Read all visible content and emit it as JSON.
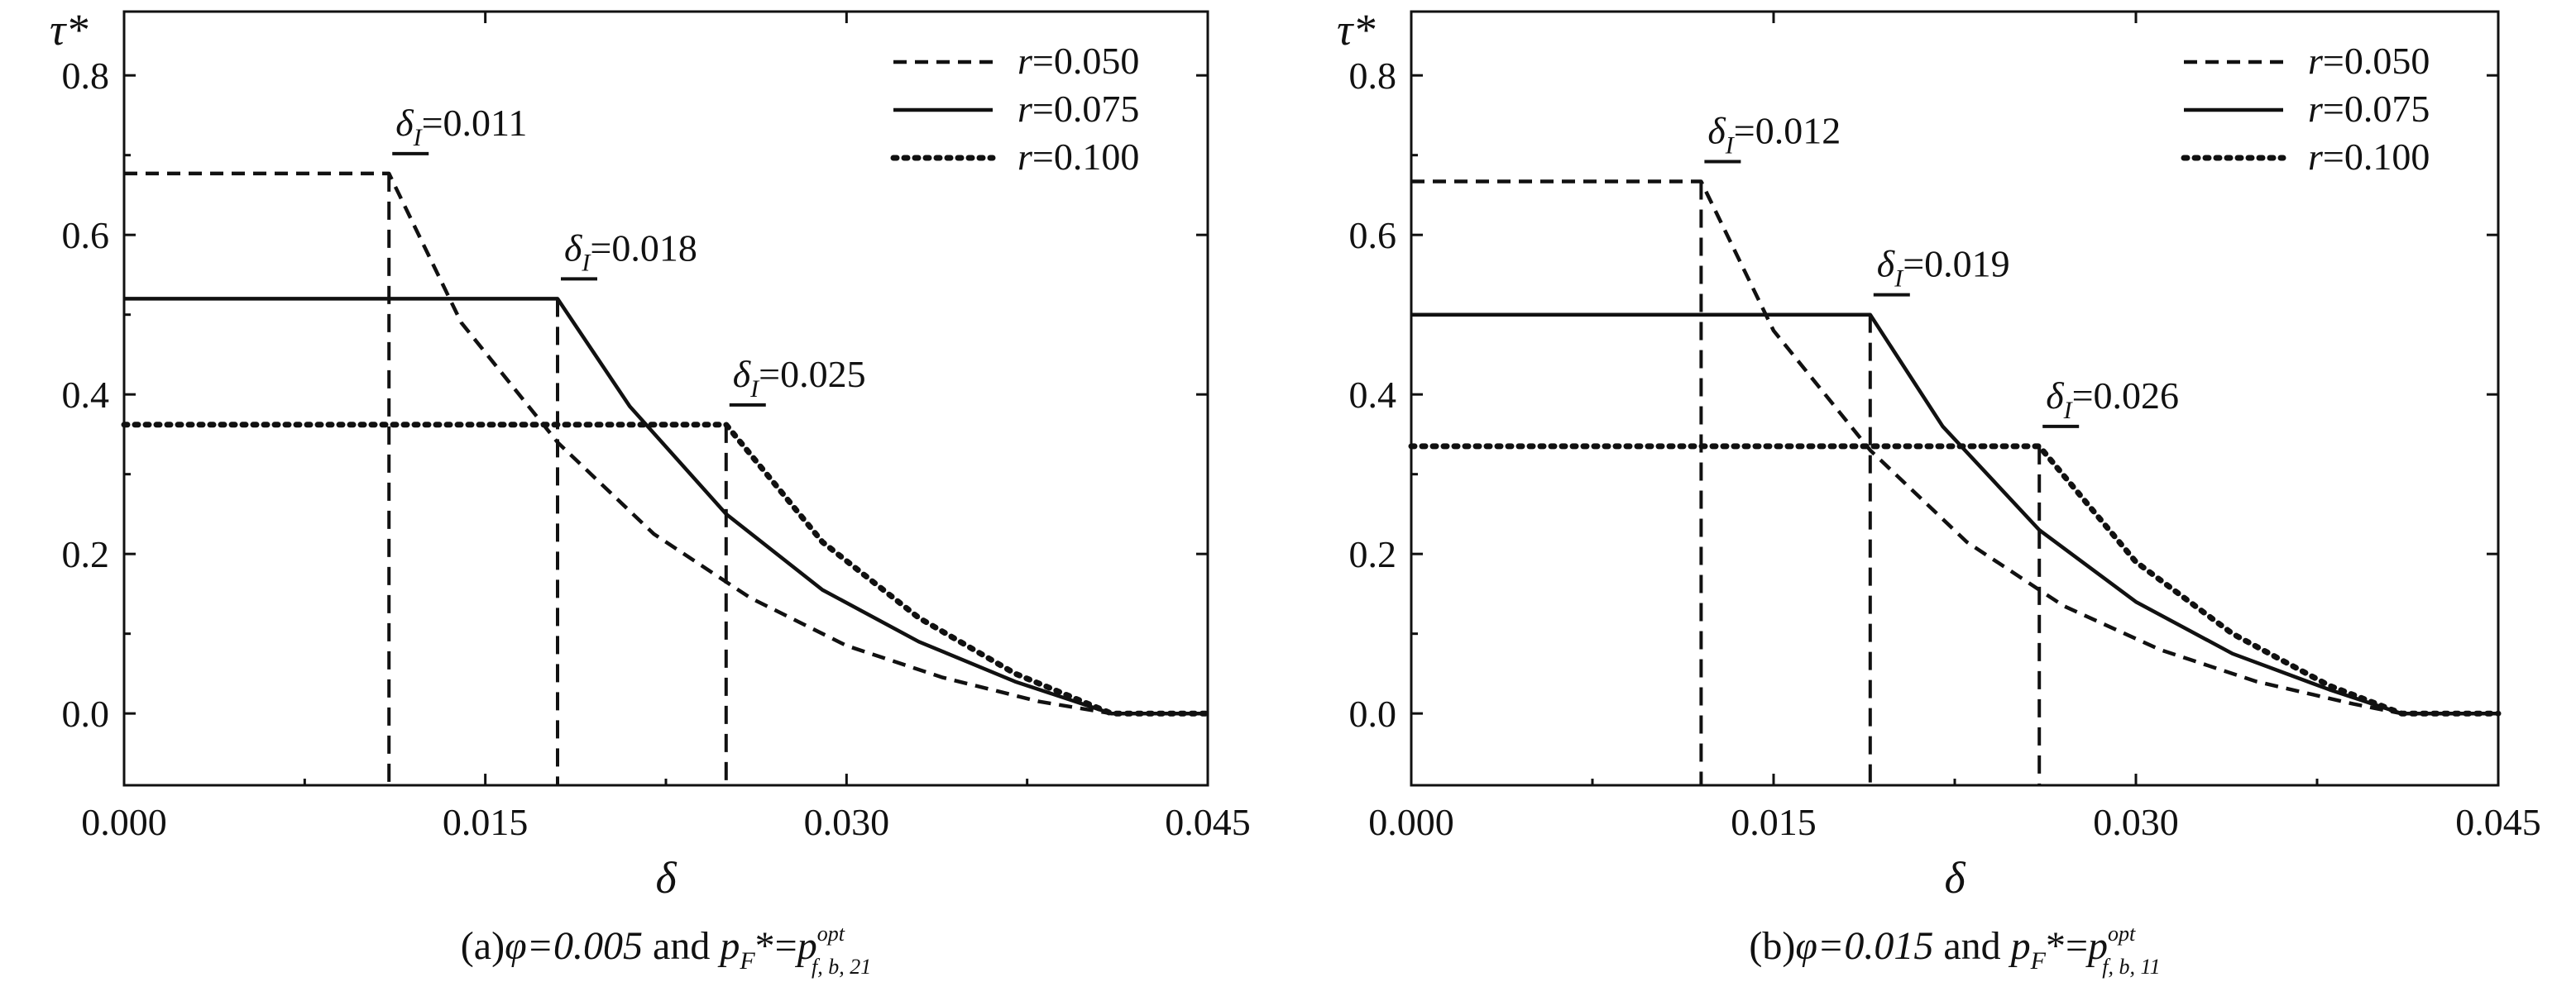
{
  "chart_data": [
    {
      "type": "line",
      "panel": "a",
      "caption": {
        "prefix": "(a)",
        "phi": "φ=0.005",
        "and": "and",
        "p": "p",
        "p_sub": "F",
        "eq": "*=",
        "rhs": "p",
        "rhs_sup": "opt",
        "rhs_sub": "f, b, 21"
      },
      "xlabel": "δ",
      "ylabel": "τ*",
      "xlim": [
        0,
        0.045
      ],
      "ylim": [
        -0.09,
        0.88
      ],
      "xticks": [
        0,
        0.015,
        0.03,
        0.045
      ],
      "xtick_labels": [
        "0.000",
        "0.015",
        "0.030",
        "0.045"
      ],
      "yticks": [
        0,
        0.2,
        0.4,
        0.6,
        0.8
      ],
      "ytick_labels": [
        "0.0",
        "0.2",
        "0.4",
        "0.6",
        "0.8"
      ],
      "legend_position": "top-right",
      "grid": false,
      "series": [
        {
          "name": "r=0.050",
          "r": "r",
          "rval": "=0.050",
          "style": "dashed",
          "x": [
            0,
            0.011,
            0.014,
            0.018,
            0.022,
            0.026,
            0.03,
            0.034,
            0.038,
            0.041,
            0.045
          ],
          "y": [
            0.677,
            0.677,
            0.49,
            0.34,
            0.225,
            0.145,
            0.085,
            0.045,
            0.015,
            0,
            0
          ],
          "threshold_label": {
            "delta": "δ",
            "sub": "I",
            "value": "=0.011"
          },
          "threshold": 0.011
        },
        {
          "name": "r=0.075",
          "r": "r",
          "rval": "=0.075",
          "style": "solid",
          "x": [
            0,
            0.018,
            0.021,
            0.025,
            0.029,
            0.033,
            0.037,
            0.041,
            0.045
          ],
          "y": [
            0.52,
            0.52,
            0.385,
            0.25,
            0.155,
            0.09,
            0.04,
            0,
            0
          ],
          "threshold_label": {
            "delta": "δ",
            "sub": "I",
            "value": "=0.018"
          },
          "threshold": 0.018
        },
        {
          "name": "r=0.100",
          "r": "r",
          "rval": "=0.100",
          "style": "dotted",
          "x": [
            0,
            0.025,
            0.029,
            0.033,
            0.037,
            0.041,
            0.045
          ],
          "y": [
            0.362,
            0.362,
            0.215,
            0.12,
            0.05,
            0,
            0
          ],
          "threshold_label": {
            "delta": "δ",
            "sub": "I",
            "value": "=0.025"
          },
          "threshold": 0.025
        }
      ]
    },
    {
      "type": "line",
      "panel": "b",
      "caption": {
        "prefix": "(b)",
        "phi": "φ=0.015",
        "and": "and",
        "p": "p",
        "p_sub": "F",
        "eq": "*=",
        "rhs": "p",
        "rhs_sup": "opt",
        "rhs_sub": "f, b, 11"
      },
      "xlabel": "δ",
      "ylabel": "τ*",
      "xlim": [
        0,
        0.045
      ],
      "ylim": [
        -0.09,
        0.88
      ],
      "xticks": [
        0,
        0.015,
        0.03,
        0.045
      ],
      "xtick_labels": [
        "0.000",
        "0.015",
        "0.030",
        "0.045"
      ],
      "yticks": [
        0,
        0.2,
        0.4,
        0.6,
        0.8
      ],
      "ytick_labels": [
        "0.0",
        "0.2",
        "0.4",
        "0.6",
        "0.8"
      ],
      "legend_position": "top-right",
      "grid": false,
      "series": [
        {
          "name": "r=0.050",
          "r": "r",
          "rval": "=0.050",
          "style": "dashed",
          "x": [
            0,
            0.012,
            0.015,
            0.019,
            0.023,
            0.027,
            0.031,
            0.035,
            0.039,
            0.041,
            0.045
          ],
          "y": [
            0.667,
            0.667,
            0.48,
            0.33,
            0.215,
            0.135,
            0.08,
            0.04,
            0.012,
            0,
            0
          ],
          "threshold_label": {
            "delta": "δ",
            "sub": "I",
            "value": "=0.012"
          },
          "threshold": 0.012
        },
        {
          "name": "r=0.075",
          "r": "r",
          "rval": "=0.075",
          "style": "solid",
          "x": [
            0,
            0.019,
            0.022,
            0.026,
            0.03,
            0.034,
            0.038,
            0.041,
            0.045
          ],
          "y": [
            0.5,
            0.5,
            0.36,
            0.23,
            0.14,
            0.075,
            0.03,
            0,
            0
          ],
          "threshold_label": {
            "delta": "δ",
            "sub": "I",
            "value": "=0.019"
          },
          "threshold": 0.019
        },
        {
          "name": "r=0.100",
          "r": "r",
          "rval": "=0.100",
          "style": "dotted",
          "x": [
            0,
            0.026,
            0.03,
            0.034,
            0.038,
            0.041,
            0.045
          ],
          "y": [
            0.335,
            0.335,
            0.19,
            0.1,
            0.035,
            0,
            0
          ],
          "threshold_label": {
            "delta": "δ",
            "sub": "I",
            "value": "=0.026"
          },
          "threshold": 0.026
        }
      ]
    }
  ]
}
